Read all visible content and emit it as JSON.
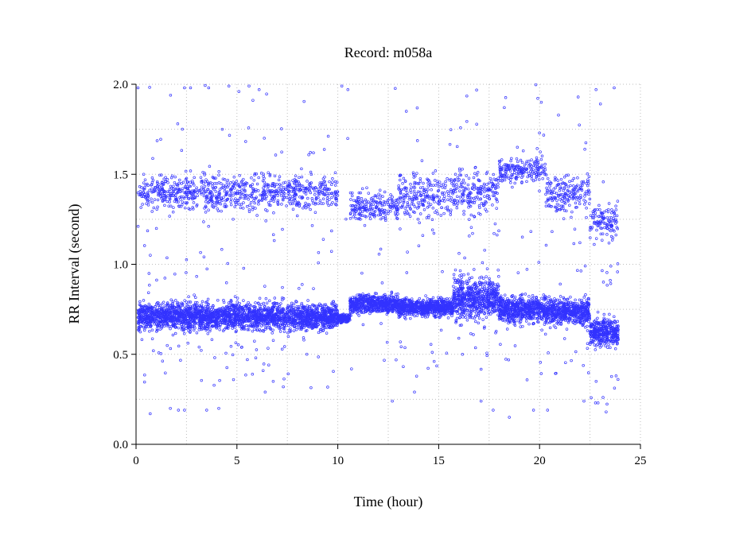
{
  "chart_data": {
    "type": "scatter",
    "title": "Record:  m058a",
    "xlabel": "Time (hour)",
    "ylabel": "RR Interval (second)",
    "xlim": [
      0,
      25
    ],
    "ylim": [
      0,
      2.0
    ],
    "xticks": [
      0,
      5,
      10,
      15,
      20,
      25
    ],
    "xtick_labels": [
      "0",
      "5",
      "10",
      "15",
      "20",
      "25"
    ],
    "yticks": [
      0.0,
      0.5,
      1.0,
      1.5,
      2.0
    ],
    "ytick_labels": [
      "0.0",
      "0.5",
      "1.0",
      "1.5",
      "2.0"
    ],
    "grid": true,
    "marker_color": "#3333ff",
    "series": [
      {
        "segments": [
          {
            "x_start": 0.1,
            "x_end": 10.0,
            "main_y": 0.71,
            "main_spread": 0.06,
            "upper_y": 1.4,
            "upper_spread": 0.08,
            "outlier_density": 0.25
          },
          {
            "x_start": 10.0,
            "x_end": 10.6,
            "main_y": 0.7,
            "main_spread": 0.02,
            "upper_y": 0,
            "upper_spread": 0,
            "outlier_density": 0.05
          },
          {
            "x_start": 10.6,
            "x_end": 13.0,
            "main_y": 0.78,
            "main_spread": 0.04,
            "upper_y": 1.32,
            "upper_spread": 0.07,
            "outlier_density": 0.1
          },
          {
            "x_start": 13.0,
            "x_end": 15.7,
            "main_y": 0.76,
            "main_spread": 0.04,
            "upper_y": 1.38,
            "upper_spread": 0.1,
            "outlier_density": 0.2
          },
          {
            "x_start": 15.7,
            "x_end": 18.0,
            "main_y": 0.81,
            "main_spread": 0.09,
            "upper_y": 1.4,
            "upper_spread": 0.1,
            "outlier_density": 0.35
          },
          {
            "x_start": 18.0,
            "x_end": 20.3,
            "main_y": 0.75,
            "main_spread": 0.06,
            "upper_y": 1.52,
            "upper_spread": 0.05,
            "outlier_density": 0.2
          },
          {
            "x_start": 20.3,
            "x_end": 22.5,
            "main_y": 0.74,
            "main_spread": 0.06,
            "upper_y": 1.4,
            "upper_spread": 0.08,
            "outlier_density": 0.25
          },
          {
            "x_start": 22.5,
            "x_end": 23.9,
            "main_y": 0.62,
            "main_spread": 0.06,
            "upper_y": 1.24,
            "upper_spread": 0.08,
            "outlier_density": 0.3
          }
        ],
        "isolated_points": [
          [
            0.1,
            1.98
          ],
          [
            0.7,
            0.17
          ],
          [
            1.7,
            0.2
          ],
          [
            2.1,
            0.19
          ],
          [
            2.4,
            0.19
          ],
          [
            3.5,
            0.19
          ],
          [
            4.1,
            0.2
          ],
          [
            2.4,
            1.98
          ],
          [
            2.7,
            1.98
          ],
          [
            3.6,
            1.98
          ],
          [
            4.6,
            1.99
          ],
          [
            5.1,
            1.96
          ],
          [
            5.6,
            1.99
          ],
          [
            6.1,
            1.97
          ],
          [
            6.4,
            0.29
          ],
          [
            6.8,
            0.35
          ],
          [
            10.2,
            1.99
          ],
          [
            10.5,
            1.97
          ],
          [
            12.7,
            0.24
          ],
          [
            13.8,
            0.29
          ],
          [
            17.1,
            0.24
          ],
          [
            17.7,
            0.19
          ],
          [
            18.5,
            0.15
          ],
          [
            19.7,
            0.19
          ],
          [
            20.4,
            0.19
          ],
          [
            22.2,
            0.24
          ],
          [
            22.9,
            0.23
          ],
          [
            23.3,
            0.18
          ],
          [
            23.7,
            1.98
          ],
          [
            22.8,
            1.97
          ],
          [
            18.9,
            1.65
          ],
          [
            19.6,
            1.58
          ]
        ]
      }
    ]
  }
}
